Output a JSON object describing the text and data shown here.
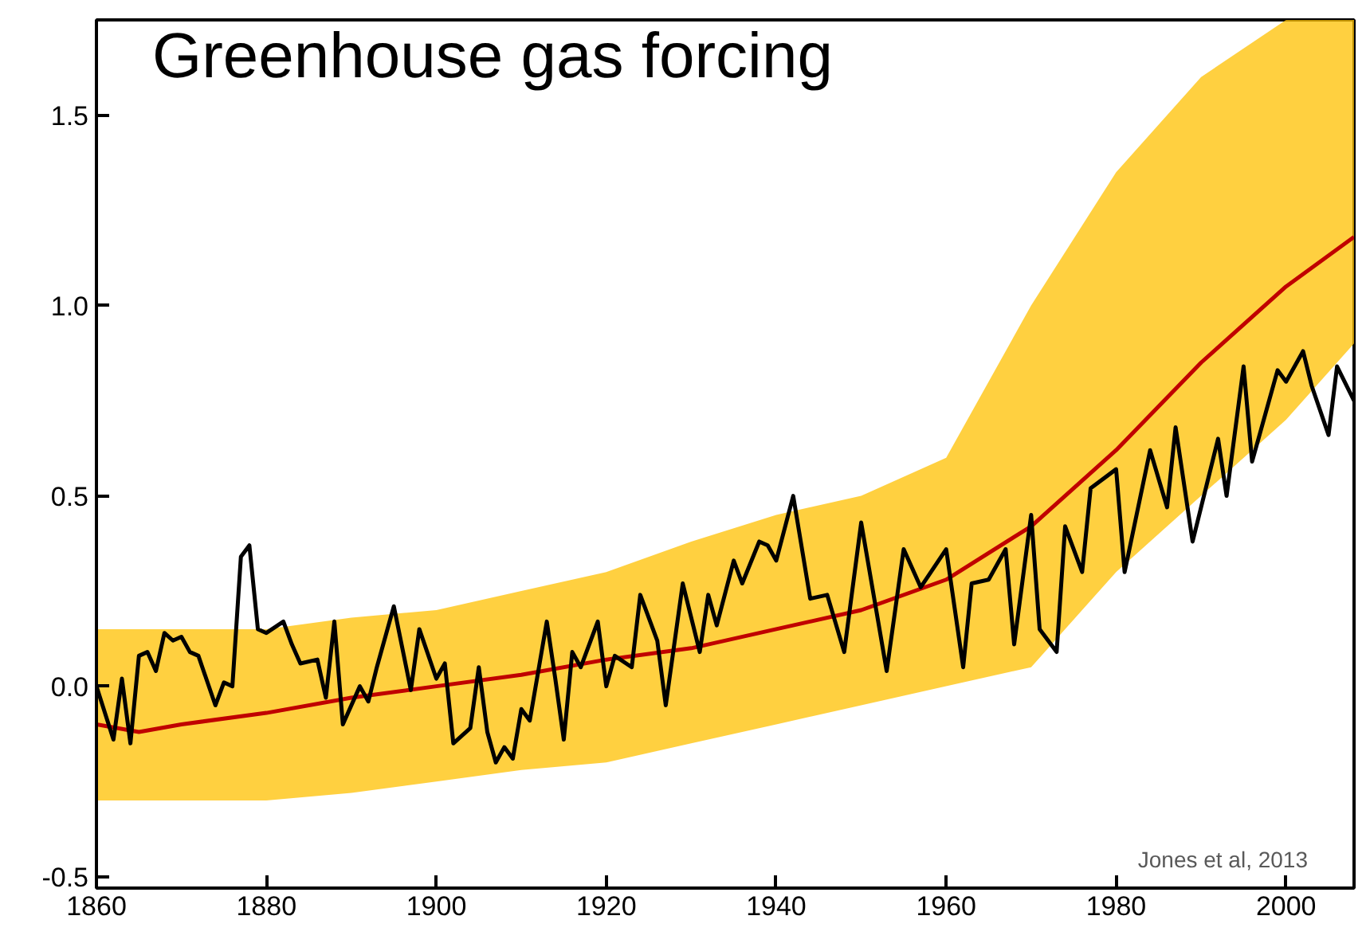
{
  "chart_data": {
    "type": "line",
    "title": "Greenhouse gas forcing",
    "xlim": [
      1860,
      2008
    ],
    "ylim": [
      -0.53,
      1.75
    ],
    "xticks": [
      1860,
      1880,
      1900,
      1920,
      1940,
      1960,
      1980,
      2000
    ],
    "yticks": [
      {
        "value": -0.5,
        "label": "-0.5"
      },
      {
        "value": 0,
        "label": "0.0"
      },
      {
        "value": 0.5,
        "label": "0.5"
      },
      {
        "value": 1,
        "label": "1.0"
      },
      {
        "value": 1.5,
        "label": "1.5"
      }
    ],
    "grid": false,
    "annotations": [
      "Jones et al, 2013"
    ],
    "series": [
      {
        "color": "#c00000",
        "x": [
          1860,
          1865,
          1870,
          1880,
          1890,
          1900,
          1910,
          1920,
          1930,
          1940,
          1950,
          1960,
          1970,
          1980,
          1990,
          2000,
          2008
        ],
        "values": [
          -0.1,
          -0.12,
          -0.1,
          -0.07,
          -0.03,
          0.0,
          0.03,
          0.07,
          0.1,
          0.15,
          0.2,
          0.28,
          0.42,
          0.62,
          0.85,
          1.05,
          1.18
        ],
        "lower": [
          -0.3,
          -0.3,
          -0.3,
          -0.3,
          -0.28,
          -0.25,
          -0.22,
          -0.2,
          -0.15,
          -0.1,
          -0.05,
          0.0,
          0.05,
          0.3,
          0.5,
          0.7,
          0.9
        ],
        "upper": [
          0.15,
          0.15,
          0.15,
          0.15,
          0.18,
          0.2,
          0.25,
          0.3,
          0.38,
          0.45,
          0.5,
          0.6,
          1.0,
          1.35,
          1.6,
          1.75,
          1.75
        ]
      },
      {
        "color": "#000000",
        "x": [
          1860,
          1862,
          1863,
          1864,
          1865,
          1866,
          1867,
          1868,
          1869,
          1870,
          1871,
          1872,
          1874,
          1875,
          1876,
          1877,
          1878,
          1879,
          1880,
          1882,
          1883,
          1884,
          1886,
          1887,
          1888,
          1889,
          1891,
          1892,
          1893,
          1895,
          1896,
          1897,
          1898,
          1900,
          1901,
          1902,
          1904,
          1905,
          1906,
          1907,
          1908,
          1909,
          1910,
          1911,
          1913,
          1914,
          1915,
          1916,
          1917,
          1919,
          1920,
          1921,
          1923,
          1924,
          1926,
          1927,
          1929,
          1931,
          1932,
          1933,
          1935,
          1936,
          1938,
          1939,
          1940,
          1942,
          1944,
          1946,
          1948,
          1950,
          1953,
          1955,
          1957,
          1960,
          1962,
          1963,
          1965,
          1967,
          1968,
          1970,
          1971,
          1973,
          1974,
          1976,
          1977,
          1980,
          1981,
          1984,
          1986,
          1987,
          1989,
          1992,
          1993,
          1995,
          1996,
          1999,
          2000,
          2002,
          2003,
          2005,
          2006,
          2008
        ],
        "values": [
          0.0,
          -0.14,
          0.02,
          -0.15,
          0.08,
          0.09,
          0.04,
          0.14,
          0.12,
          0.13,
          0.09,
          0.08,
          -0.05,
          0.01,
          0.0,
          0.34,
          0.37,
          0.15,
          0.14,
          0.17,
          0.11,
          0.06,
          0.07,
          -0.03,
          0.17,
          -0.1,
          0.0,
          -0.04,
          0.05,
          0.21,
          0.1,
          -0.01,
          0.15,
          0.02,
          0.06,
          -0.15,
          -0.11,
          0.05,
          -0.12,
          -0.2,
          -0.16,
          -0.19,
          -0.06,
          -0.09,
          0.17,
          0.02,
          -0.14,
          0.09,
          0.05,
          0.17,
          0.0,
          0.08,
          0.05,
          0.24,
          0.12,
          -0.05,
          0.27,
          0.09,
          0.24,
          0.16,
          0.33,
          0.27,
          0.38,
          0.37,
          0.33,
          0.5,
          0.23,
          0.24,
          0.09,
          0.43,
          0.04,
          0.36,
          0.26,
          0.36,
          0.05,
          0.27,
          0.28,
          0.36,
          0.11,
          0.45,
          0.15,
          0.09,
          0.42,
          0.3,
          0.52,
          0.57,
          0.3,
          0.62,
          0.47,
          0.68,
          0.38,
          0.65,
          0.5,
          0.84,
          0.59,
          0.83,
          0.8,
          0.88,
          0.79,
          0.66,
          0.84,
          0.75
        ]
      }
    ]
  }
}
